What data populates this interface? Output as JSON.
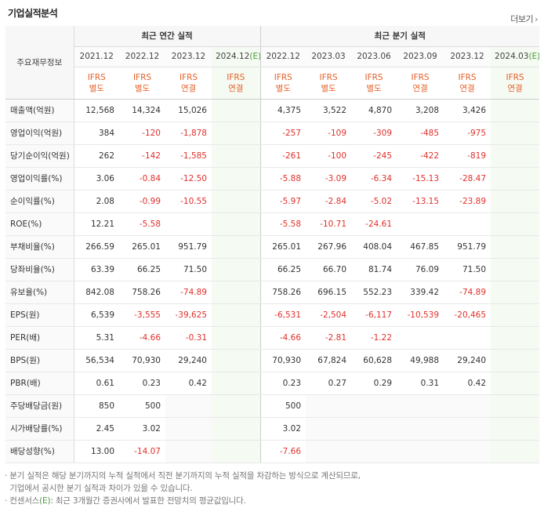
{
  "title": "기업실적분석",
  "more_label": "더보기",
  "header": {
    "row_title": "주요재무정보",
    "annual_group": "최근 연간 실적",
    "quarter_group": "최근 분기 실적",
    "annual_periods": [
      "2021.12",
      "2022.12",
      "2023.12",
      "2024.12"
    ],
    "annual_est_suffix": "(E)",
    "quarter_periods": [
      "2022.12",
      "2023.03",
      "2023.06",
      "2023.09",
      "2023.12",
      "2024.03"
    ],
    "quarter_est_suffix": "(E)",
    "ifrs_top": "IFRS",
    "annual_types": [
      "별도",
      "별도",
      "연결",
      "연결"
    ],
    "quarter_types": [
      "별도",
      "별도",
      "별도",
      "연결",
      "연결",
      "연결"
    ]
  },
  "rows": [
    {
      "label": "매출액(억원)",
      "annual": [
        "12,568",
        "14,324",
        "15,026",
        ""
      ],
      "quarter": [
        "4,375",
        "3,522",
        "4,870",
        "3,208",
        "3,426",
        ""
      ]
    },
    {
      "label": "영업이익(억원)",
      "annual": [
        "384",
        "-120",
        "-1,878",
        ""
      ],
      "quarter": [
        "-257",
        "-109",
        "-309",
        "-485",
        "-975",
        ""
      ]
    },
    {
      "label": "당기순이익(억원)",
      "annual": [
        "262",
        "-142",
        "-1,585",
        ""
      ],
      "quarter": [
        "-261",
        "-100",
        "-245",
        "-422",
        "-819",
        ""
      ]
    },
    {
      "label": "영업이익률(%)",
      "annual": [
        "3.06",
        "-0.84",
        "-12.50",
        ""
      ],
      "quarter": [
        "-5.88",
        "-3.09",
        "-6.34",
        "-15.13",
        "-28.47",
        ""
      ]
    },
    {
      "label": "순이익률(%)",
      "annual": [
        "2.08",
        "-0.99",
        "-10.55",
        ""
      ],
      "quarter": [
        "-5.97",
        "-2.84",
        "-5.02",
        "-13.15",
        "-23.89",
        ""
      ]
    },
    {
      "label": "ROE(%)",
      "annual": [
        "12.21",
        "-5.58",
        "",
        ""
      ],
      "quarter": [
        "-5.58",
        "-10.71",
        "-24.61",
        "",
        "",
        ""
      ]
    },
    {
      "label": "부채비율(%)",
      "annual": [
        "266.59",
        "265.01",
        "951.79",
        ""
      ],
      "quarter": [
        "265.01",
        "267.96",
        "408.04",
        "467.85",
        "951.79",
        ""
      ]
    },
    {
      "label": "당좌비율(%)",
      "annual": [
        "63.39",
        "66.25",
        "71.50",
        ""
      ],
      "quarter": [
        "66.25",
        "66.70",
        "81.74",
        "76.09",
        "71.50",
        ""
      ]
    },
    {
      "label": "유보율(%)",
      "annual": [
        "842.08",
        "758.26",
        "-74.89",
        ""
      ],
      "quarter": [
        "758.26",
        "696.15",
        "552.23",
        "339.42",
        "-74.89",
        ""
      ]
    },
    {
      "label": "EPS(원)",
      "annual": [
        "6,539",
        "-3,555",
        "-39,625",
        ""
      ],
      "quarter": [
        "-6,531",
        "-2,504",
        "-6,117",
        "-10,539",
        "-20,465",
        ""
      ]
    },
    {
      "label": "PER(배)",
      "annual": [
        "5.31",
        "-4.66",
        "-0.31",
        ""
      ],
      "quarter": [
        "-4.66",
        "-2.81",
        "-1.22",
        "",
        "",
        ""
      ]
    },
    {
      "label": "BPS(원)",
      "annual": [
        "56,534",
        "70,930",
        "29,240",
        ""
      ],
      "quarter": [
        "70,930",
        "67,824",
        "60,628",
        "49,988",
        "29,240",
        ""
      ]
    },
    {
      "label": "PBR(배)",
      "annual": [
        "0.61",
        "0.23",
        "0.42",
        ""
      ],
      "quarter": [
        "0.23",
        "0.27",
        "0.29",
        "0.31",
        "0.42",
        ""
      ]
    },
    {
      "label": "주당배당금(원)",
      "annual": [
        "850",
        "500",
        "",
        ""
      ],
      "quarter": [
        "500",
        "",
        "",
        "",
        "",
        ""
      ]
    },
    {
      "label": "시가배당률(%)",
      "annual": [
        "2.45",
        "3.02",
        "",
        ""
      ],
      "quarter": [
        "3.02",
        "",
        "",
        "",
        "",
        ""
      ]
    },
    {
      "label": "배당성향(%)",
      "annual": [
        "13.00",
        "-14.07",
        "",
        ""
      ],
      "quarter": [
        "-7.66",
        "",
        "",
        "",
        "",
        ""
      ]
    }
  ],
  "notes": {
    "line1": "분기 실적은 해당 분기까지의 누적 실적에서 직전 분기까지의 누적 실적을 차감하는 방식으로 계산되므로,",
    "line2": "기업에서 공시한 분기 실적과 차이가 있을 수 있습니다.",
    "line3_prefix": "컨센서스",
    "line3_mark": "(E)",
    "line3_rest": ": 최근 3개월간 증권사에서 발표한 전망치의 평균값입니다."
  },
  "colors": {
    "negative": "#e0302b",
    "ifrs": "#e4612a",
    "estimate": "#4a9a3b"
  }
}
